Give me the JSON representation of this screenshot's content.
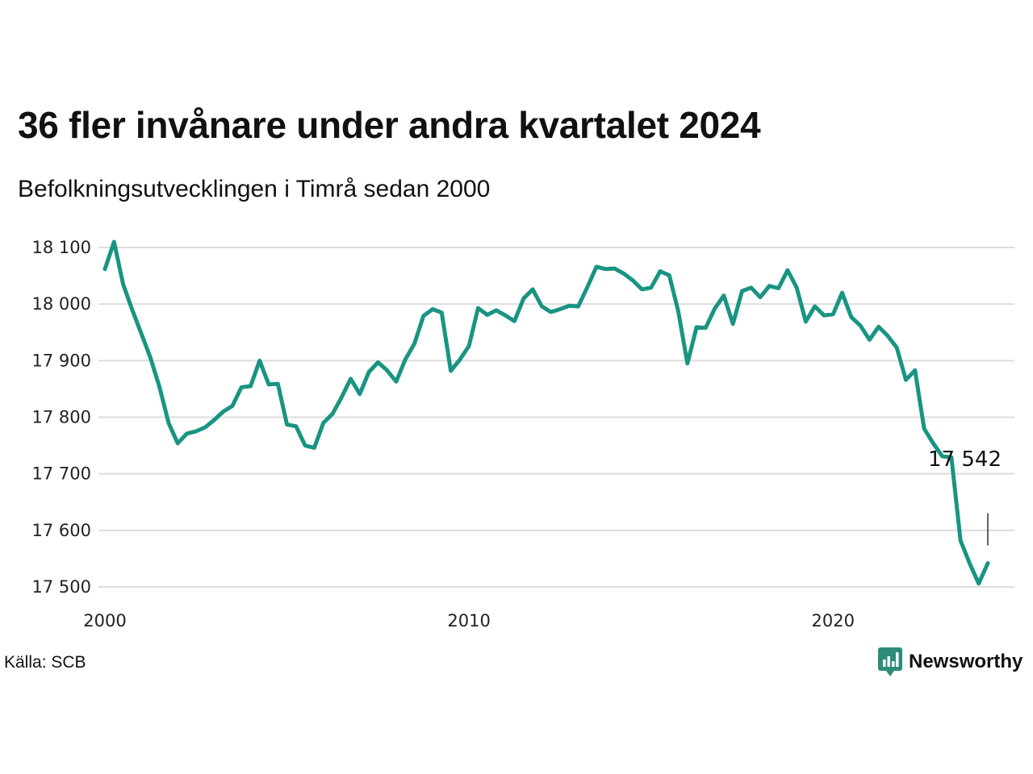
{
  "title": "36 fler invånare under andra kvartalet 2024",
  "subtitle": "Befolkningsutvecklingen i Timrå sedan 2000",
  "source": "Källa: SCB",
  "brand": "Newsworthy",
  "colors": {
    "line": "#1a9482",
    "grid": "#dddddd",
    "text": "#111111",
    "brand": "#2e8b7a"
  },
  "chart_data": {
    "type": "line",
    "title": "36 fler invånare under andra kvartalet 2024",
    "subtitle": "Befolkningsutvecklingen i Timrå sedan 2000",
    "xlabel": "",
    "ylabel": "",
    "xlim": [
      2000,
      2024.25
    ],
    "ylim": [
      17500,
      18100
    ],
    "y_ticks": [
      17500,
      17600,
      17700,
      17800,
      17900,
      18000,
      18100
    ],
    "y_tick_labels": [
      "17 500",
      "17 600",
      "17 700",
      "17 800",
      "17 900",
      "18 000",
      "18 100"
    ],
    "x_ticks": [
      2000,
      2010,
      2020
    ],
    "x_tick_labels": [
      "2000",
      "2010",
      "2020"
    ],
    "grid": "horizontal",
    "end_label": "17 542",
    "series": [
      {
        "x": [
          2000.0,
          2000.25,
          2000.5,
          2000.75,
          2001.0,
          2001.25,
          2001.5,
          2001.75,
          2002.0,
          2002.25,
          2002.5,
          2002.75,
          2003.0,
          2003.25,
          2003.5,
          2003.75,
          2004.0,
          2004.25,
          2004.5,
          2004.75,
          2005.0,
          2005.25,
          2005.5,
          2005.75,
          2006.0,
          2006.25,
          2006.5,
          2006.75,
          2007.0,
          2007.25,
          2007.5,
          2007.75,
          2008.0,
          2008.25,
          2008.5,
          2008.75,
          2009.0,
          2009.25,
          2009.5,
          2009.75,
          2010.0,
          2010.25,
          2010.5,
          2010.75,
          2011.0,
          2011.25,
          2011.5,
          2011.75,
          2012.0,
          2012.25,
          2012.5,
          2012.75,
          2013.0,
          2013.25,
          2013.5,
          2013.75,
          2014.0,
          2014.25,
          2014.5,
          2014.75,
          2015.0,
          2015.25,
          2015.5,
          2015.75,
          2016.0,
          2016.25,
          2016.5,
          2016.75,
          2017.0,
          2017.25,
          2017.5,
          2017.75,
          2018.0,
          2018.25,
          2018.5,
          2018.75,
          2019.0,
          2019.25,
          2019.5,
          2019.75,
          2020.0,
          2020.25,
          2020.5,
          2020.75,
          2021.0,
          2021.25,
          2021.5,
          2021.75,
          2022.0,
          2022.25,
          2022.5,
          2022.75,
          2023.0,
          2023.25,
          2023.5,
          2023.75,
          2024.0,
          2024.25
        ],
        "y": [
          18062,
          18110,
          18035,
          17990,
          17948,
          17905,
          17853,
          17790,
          17754,
          17771,
          17775,
          17782,
          17795,
          17810,
          17820,
          17853,
          17855,
          17900,
          17858,
          17859,
          17787,
          17784,
          17750,
          17746,
          17790,
          17806,
          17835,
          17868,
          17841,
          17880,
          17897,
          17883,
          17863,
          17902,
          17930,
          17979,
          17991,
          17985,
          17882,
          17902,
          17926,
          17993,
          17981,
          17989,
          17980,
          17970,
          18010,
          18026,
          17996,
          17986,
          17991,
          17997,
          17996,
          18030,
          18066,
          18062,
          18063,
          18054,
          18042,
          18026,
          18029,
          18058,
          18051,
          17987,
          17895,
          17959,
          17958,
          17992,
          18015,
          17965,
          18023,
          18029,
          18012,
          18032,
          18028,
          18060,
          18029,
          17969,
          17996,
          17980,
          17982,
          18020,
          17977,
          17962,
          17937,
          17960,
          17944,
          17923,
          17866,
          17883,
          17780,
          17754,
          17731,
          17729,
          17582,
          17542,
          17506,
          17542
        ]
      }
    ]
  }
}
